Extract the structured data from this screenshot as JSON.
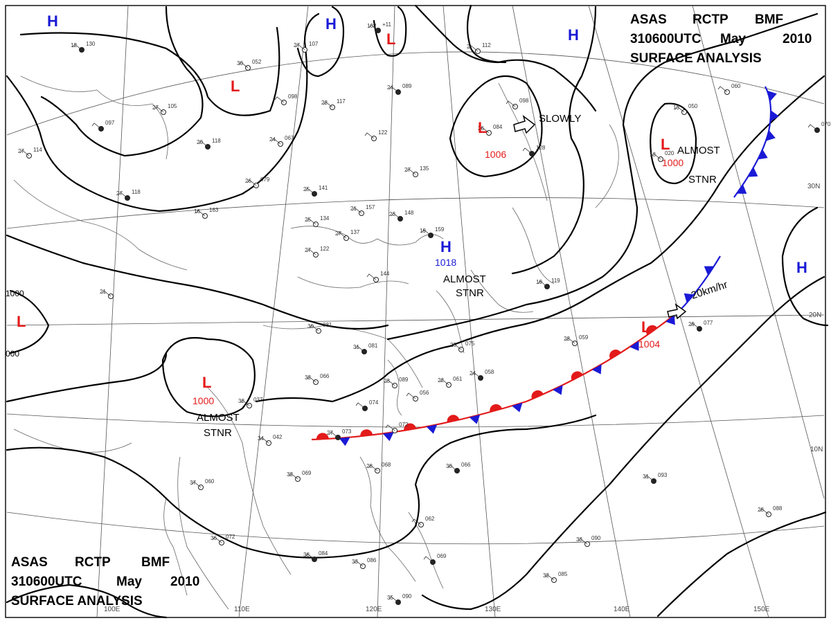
{
  "header": {
    "line1": [
      "ASAS",
      "RCTP",
      "BMF"
    ],
    "line2": [
      "310600UTC",
      "May",
      "2010"
    ],
    "line3": "SURFACE ANALYSIS"
  },
  "pressure_centers": [
    {
      "type": "H"
    },
    {
      "type": "H"
    },
    {
      "type": "L"
    },
    {
      "type": "H"
    },
    {
      "type": "L"
    },
    {
      "type": "L",
      "value": "1006"
    },
    {
      "type": "L",
      "value": "1000"
    },
    {
      "type": "H",
      "value": "1018"
    },
    {
      "type": "L"
    },
    {
      "type": "L",
      "value": "1000"
    },
    {
      "type": "L",
      "value": "1004"
    },
    {
      "type": "H"
    }
  ],
  "annotations": {
    "slowly": "SLOWLY",
    "almost_stnr_ne_1": "ALMOST",
    "almost_stnr_ne_2": "STNR",
    "almost_stnr_c_1": "ALMOST",
    "almost_stnr_c_2": "STNR",
    "almost_stnr_sw_1": "ALMOST",
    "almost_stnr_sw_2": "STNR",
    "speed": "20km/hr"
  },
  "isobar_labels": {
    "upper": "1000",
    "lower": "000"
  },
  "longitudes": [
    "100E",
    "110E",
    "120E",
    "130E",
    "140E",
    "150E"
  ],
  "latitudes": [
    "30N",
    "20N",
    "10N"
  ],
  "stations": [
    {
      "t": "12",
      "p": "130"
    },
    {
      "t": "30",
      "p": "052"
    },
    {
      "t": "27",
      "p": "107"
    },
    {
      "t": "102",
      "p": "+11"
    },
    {
      "t": "2",
      "p": "112"
    },
    {
      "t": "27",
      "p": "105"
    },
    {
      "t": "",
      "p": "097"
    },
    {
      "t": "",
      "p": "098"
    },
    {
      "t": "22",
      "p": "117"
    },
    {
      "t": "24",
      "p": "089"
    },
    {
      "t": "",
      "p": "098"
    },
    {
      "t": "26",
      "p": "084"
    },
    {
      "t": "20",
      "p": "118"
    },
    {
      "t": "24",
      "p": "067"
    },
    {
      "t": "",
      "p": "122"
    },
    {
      "t": "",
      "p": "128"
    },
    {
      "t": "",
      "p": "060"
    },
    {
      "t": "13",
      "p": "050"
    },
    {
      "t": "",
      "p": "070"
    },
    {
      "t": "27",
      "p": "114"
    },
    {
      "t": "26",
      "p": "079"
    },
    {
      "t": "25",
      "p": "141"
    },
    {
      "t": "27",
      "p": "135"
    },
    {
      "t": "13",
      "p": "020"
    },
    {
      "t": "27",
      "p": "118"
    },
    {
      "t": "16",
      "p": "163"
    },
    {
      "t": "21",
      "p": "157"
    },
    {
      "t": "23",
      "p": "148"
    },
    {
      "t": "25",
      "p": "134"
    },
    {
      "t": "27",
      "p": "137"
    },
    {
      "t": "19",
      "p": "159"
    },
    {
      "t": "27",
      "p": "122"
    },
    {
      "t": "",
      "p": "144"
    },
    {
      "t": "19",
      "p": "119"
    },
    {
      "t": "21",
      "p": "",
      "x": ""
    },
    {
      "t": "30",
      "p": "081"
    },
    {
      "t": "31",
      "p": "081"
    },
    {
      "t": "25",
      "p": "075"
    },
    {
      "t": "22",
      "p": "059"
    },
    {
      "t": "29",
      "p": "077"
    },
    {
      "t": "32",
      "p": "066"
    },
    {
      "t": "22",
      "p": "061"
    },
    {
      "t": "24",
      "p": "058"
    },
    {
      "t": "23",
      "p": "089"
    },
    {
      "t": "",
      "p": "056"
    },
    {
      "t": "",
      "p": "074"
    },
    {
      "t": "32",
      "p": "037"
    },
    {
      "t": "",
      "p": "072"
    },
    {
      "t": "27",
      "p": "073"
    },
    {
      "t": "34",
      "p": "042"
    },
    {
      "t": "28",
      "p": "068"
    },
    {
      "t": "30",
      "p": "066"
    },
    {
      "t": "32",
      "p": "069"
    },
    {
      "t": "37",
      "p": "060"
    },
    {
      "t": "31",
      "p": "093"
    },
    {
      "t": "28",
      "p": "088"
    },
    {
      "t": "36",
      "p": "072"
    },
    {
      "t": "38",
      "p": "084"
    },
    {
      "t": "33",
      "p": "086"
    },
    {
      "t": "",
      "p": "062"
    },
    {
      "t": "",
      "p": "069"
    },
    {
      "t": "33",
      "p": "090"
    },
    {
      "t": "32",
      "p": "085"
    },
    {
      "t": "35",
      "p": "090"
    }
  ],
  "colors": {
    "high": "#1a1ad6",
    "low": "#e31a1a",
    "warm_front": "#e31a1a",
    "cold_front": "#1a1ad6",
    "isobar": "#000000"
  }
}
